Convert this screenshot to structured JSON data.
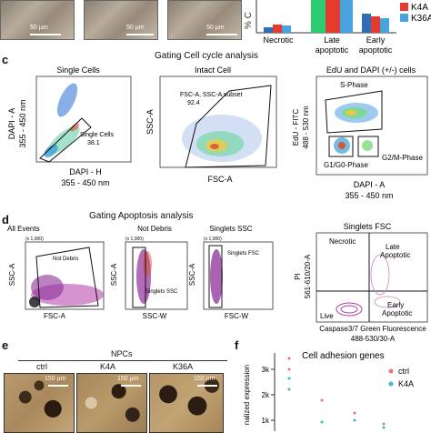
{
  "panel_a": {
    "scale_bars": [
      "50 µm",
      "50 µm",
      "50 µm"
    ]
  },
  "panel_b": {
    "ylabel": "% C",
    "legend": [
      "K4A",
      "K36A"
    ],
    "categories": [
      "Necrotic",
      "Late apoptotic",
      "Early apoptotic"
    ],
    "category_lines": [
      [
        "Necrotic"
      ],
      [
        "Late",
        "apoptotic"
      ],
      [
        "Early",
        "apoptotic"
      ]
    ],
    "colors": {
      "ctrl": "#2f6db5",
      "K4A": "#e33b2f",
      "K36A": "#4aa3df",
      "green": "#2ecc71"
    }
  },
  "panel_c": {
    "letter": "c",
    "title": "Gating Cell cycle analysis",
    "single_cells": {
      "title": "Single Cells",
      "gate_label": "Single Cells",
      "gate_value": "38.1",
      "ylabel_1": "DAPI - A",
      "ylabel_2": "355 - 450 nm",
      "xlabel_1": "DAPI - H",
      "xlabel_2": "355 - 450 nm"
    },
    "intact_cell": {
      "title": "Intact Cell",
      "gate_label": "FSC-A, SSC-A subset",
      "gate_value": "92.4",
      "ylabel": "SSC-A",
      "xlabel": "FSC-A"
    },
    "edu_dapi": {
      "title": "EdU and DAPI (+/-) cells",
      "s_phase": "S-Phase",
      "g1_phase": "G1/G0-Phase",
      "g2_phase": "G2/M-Phase",
      "ylabel_1": "EdU - FITC",
      "ylabel_2": "488 - 530 nm",
      "xlabel_1": "DAPI - A",
      "xlabel_2": "355 - 450 nm"
    }
  },
  "panel_d": {
    "letter": "d",
    "title": "Gating Apoptosis analysis",
    "all_events": {
      "title": "All Events",
      "gate": "Not Debris",
      "ylabel": "SSC-A",
      "xlabel": "FSC-A",
      "scale": "(x 1,000)"
    },
    "not_debris": {
      "title": "Not Debris",
      "gate": "Singlets SSC",
      "ylabel": "SSC-A",
      "xlabel": "SSC-W",
      "scale": "(x 1,000)"
    },
    "singlets_ssc": {
      "title": "Singlets SSC",
      "gate": "Singlets FSC",
      "ylabel": "SSC-A",
      "xlabel": "FSC-W",
      "scale": "(x 1,000)"
    },
    "singlets_fsc": {
      "title": "Singlets FSC",
      "necrotic": "Necrotic",
      "late": "Late",
      "late2": "Apoptotic",
      "early": "Early",
      "early2": "Apoptotic",
      "live": "Live",
      "ylabel_1": "PI",
      "ylabel_2": "561-610/20-A",
      "xlabel_1": "Caspase3/7 Green Fluorescence",
      "xlabel_2": "488-530/30-A"
    }
  },
  "panel_e": {
    "letter": "e",
    "title": "NPCs",
    "labels": [
      "ctrl",
      "K4A",
      "K36A"
    ],
    "scale_bars": [
      "150 µm",
      "150 µm",
      "150 µm"
    ]
  },
  "panel_f": {
    "letter": "f",
    "title": "Cell adhesion genes",
    "ylabel": "nalized expression",
    "yticks": [
      "3k",
      "2k",
      "1k"
    ],
    "legend": [
      "ctrl",
      "K4A"
    ],
    "colors": {
      "ctrl": "#e8767a",
      "K4A": "#3fb8c4"
    }
  }
}
